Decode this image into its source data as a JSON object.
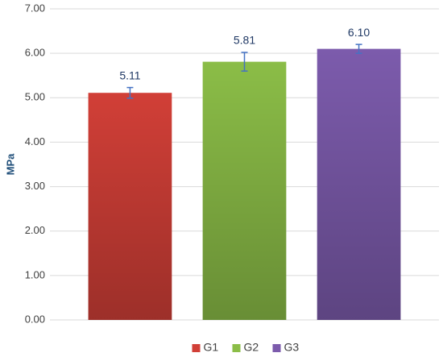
{
  "chart_data": {
    "type": "bar",
    "y_label": "MPa",
    "categories": [
      null
    ],
    "series": [
      {
        "name": "G1",
        "color": "#d13f37",
        "values": [
          5.11
        ],
        "value_labels": [
          "5.11"
        ],
        "errors": [
          0.12
        ]
      },
      {
        "name": "G2",
        "color": "#8bbd47",
        "values": [
          5.81
        ],
        "value_labels": [
          "5.81"
        ],
        "errors": [
          0.21
        ]
      },
      {
        "name": "G3",
        "color": "#7c5bac",
        "values": [
          6.1
        ],
        "value_labels": [
          "6.10"
        ],
        "errors": [
          0.1
        ]
      }
    ],
    "ylim": [
      0,
      7
    ],
    "yticks": [
      {
        "value": 0,
        "label": "0.00"
      },
      {
        "value": 1,
        "label": "1.00"
      },
      {
        "value": 2,
        "label": "2.00"
      },
      {
        "value": 3,
        "label": "3.00"
      },
      {
        "value": 4,
        "label": "4.00"
      },
      {
        "value": 5,
        "label": "5.00"
      },
      {
        "value": 6,
        "label": "6.00"
      },
      {
        "value": 7,
        "label": "7.00"
      }
    ],
    "grid": true,
    "legend": "bottom"
  }
}
